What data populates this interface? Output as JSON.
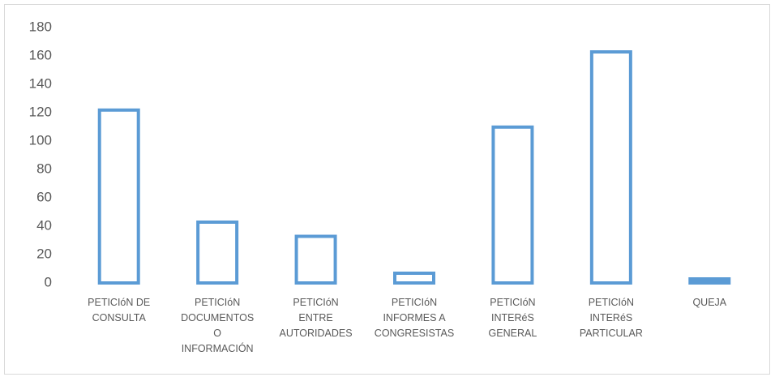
{
  "chart_data": {
    "type": "bar",
    "categories": [
      "PETICIóN DE CONSULTA",
      "PETICIóN DOCUMENTOS O INFORMACIÓN",
      "PETICIóN ENTRE AUTORIDADES",
      "PETICIóN INFORMES A CONGRESISTAS",
      "PETICIóN INTERéS GENERAL",
      "PETICIóN INTERéS PARTICULAR",
      "QUEJA"
    ],
    "values": [
      123,
      44,
      34,
      8,
      111,
      164,
      4
    ],
    "color": "#5b9bd5",
    "ylim": [
      0,
      180
    ],
    "yticks": [
      0,
      20,
      40,
      60,
      80,
      100,
      120,
      140,
      160,
      180
    ],
    "grid": false
  }
}
